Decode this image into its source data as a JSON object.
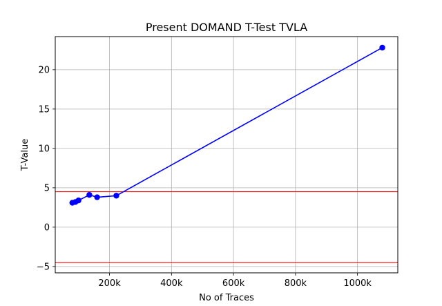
{
  "chart_data": {
    "type": "line",
    "title": "Present DOMAND T-Test TVLA",
    "xlabel": "No of Traces",
    "ylabel": "T-Value",
    "xlim": [
      25000,
      1130000
    ],
    "ylim": [
      -5.8,
      24.2
    ],
    "x_ticks": [
      200000,
      400000,
      600000,
      800000,
      1000000
    ],
    "x_tick_labels": [
      "200k",
      "400k",
      "600k",
      "800k",
      "1000k"
    ],
    "y_ticks": [
      -5,
      0,
      5,
      10,
      15,
      20
    ],
    "y_tick_labels": [
      "−5",
      "0",
      "5",
      "10",
      "15",
      "20"
    ],
    "grid": true,
    "series": [
      {
        "color": "#0000ff",
        "marker": "circle",
        "x": [
          80000,
          90000,
          100000,
          135000,
          160000,
          222000,
          1080000
        ],
        "y": [
          3.1,
          3.2,
          3.4,
          4.1,
          3.8,
          4.0,
          22.8
        ]
      }
    ],
    "threshold_lines": [
      {
        "y": 4.5,
        "color": "#ff0000"
      },
      {
        "y": -4.5,
        "color": "#ff0000"
      }
    ]
  }
}
